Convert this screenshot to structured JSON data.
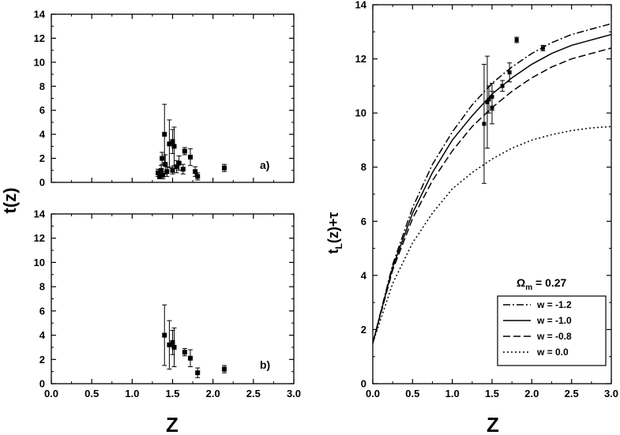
{
  "chart_data": [
    {
      "type": "scatter",
      "panel_label": "a)",
      "ylabel": "t(z)",
      "xlim": [
        0.0,
        3.0
      ],
      "ylim": [
        0,
        14
      ],
      "x_ticks": [
        0.0,
        0.5,
        1.0,
        1.5,
        2.0,
        2.5,
        3.0
      ],
      "y_ticks": [
        0,
        2,
        4,
        6,
        8,
        10,
        12,
        14
      ],
      "points": [
        {
          "x": 1.32,
          "y": 0.8,
          "err": 0.3
        },
        {
          "x": 1.34,
          "y": 0.5,
          "err": 0.2
        },
        {
          "x": 1.36,
          "y": 1.0,
          "err": 0.4
        },
        {
          "x": 1.37,
          "y": 2.0,
          "err": 0.5
        },
        {
          "x": 1.38,
          "y": 0.6,
          "err": 0.3
        },
        {
          "x": 1.4,
          "y": 4.0,
          "err": 2.5
        },
        {
          "x": 1.41,
          "y": 1.5,
          "err": 0.8
        },
        {
          "x": 1.43,
          "y": 0.9,
          "err": 0.4
        },
        {
          "x": 1.46,
          "y": 3.2,
          "err": 2.0
        },
        {
          "x": 1.5,
          "y": 3.4,
          "err": 1.0
        },
        {
          "x": 1.5,
          "y": 1.0,
          "err": 0.3
        },
        {
          "x": 1.52,
          "y": 3.0,
          "err": 1.6
        },
        {
          "x": 1.55,
          "y": 1.3,
          "err": 0.5
        },
        {
          "x": 1.58,
          "y": 1.6,
          "err": 0.6
        },
        {
          "x": 1.63,
          "y": 1.1,
          "err": 0.4
        },
        {
          "x": 1.65,
          "y": 2.6,
          "err": 0.3
        },
        {
          "x": 1.72,
          "y": 2.1,
          "err": 0.7
        },
        {
          "x": 1.78,
          "y": 0.9,
          "err": 0.4
        },
        {
          "x": 1.81,
          "y": 0.5,
          "err": 0.3
        },
        {
          "x": 2.14,
          "y": 1.2,
          "err": 0.3
        }
      ]
    },
    {
      "type": "scatter",
      "panel_label": "b)",
      "xlabel": "Z",
      "xlim": [
        0.0,
        3.0
      ],
      "ylim": [
        0,
        14
      ],
      "x_ticks": [
        0.0,
        0.5,
        1.0,
        1.5,
        2.0,
        2.5,
        3.0
      ],
      "y_ticks": [
        0,
        2,
        4,
        6,
        8,
        10,
        12,
        14
      ],
      "points": [
        {
          "x": 1.4,
          "y": 4.0,
          "err": 2.5
        },
        {
          "x": 1.46,
          "y": 3.2,
          "err": 2.0
        },
        {
          "x": 1.5,
          "y": 3.4,
          "err": 1.0
        },
        {
          "x": 1.52,
          "y": 3.0,
          "err": 1.6
        },
        {
          "x": 1.65,
          "y": 2.6,
          "err": 0.3
        },
        {
          "x": 1.72,
          "y": 2.1,
          "err": 0.7
        },
        {
          "x": 1.81,
          "y": 0.9,
          "err": 0.4
        },
        {
          "x": 2.14,
          "y": 1.2,
          "err": 0.3
        }
      ]
    },
    {
      "type": "line",
      "xlabel": "Z",
      "ylabel": "t_L(z)+τ",
      "annotation": "Ω_m = 0.27",
      "xlim": [
        0.0,
        3.0
      ],
      "ylim": [
        0,
        14
      ],
      "x_ticks": [
        0.0,
        0.5,
        1.0,
        1.5,
        2.0,
        2.5,
        3.0
      ],
      "y_ticks": [
        0,
        2,
        4,
        6,
        8,
        10,
        12,
        14
      ],
      "legend_position": "bottom-right",
      "x": [
        0.0,
        0.25,
        0.5,
        0.75,
        1.0,
        1.25,
        1.5,
        1.75,
        2.0,
        2.25,
        2.5,
        2.75,
        3.0
      ],
      "series": [
        {
          "name": "w = -1.2",
          "style": "dashdot",
          "values": [
            1.5,
            4.4,
            6.5,
            8.1,
            9.3,
            10.3,
            11.1,
            11.7,
            12.2,
            12.6,
            12.9,
            13.1,
            13.3
          ]
        },
        {
          "name": "w = -1.0",
          "style": "solid",
          "values": [
            1.5,
            4.3,
            6.3,
            7.8,
            9.0,
            9.9,
            10.7,
            11.3,
            11.8,
            12.2,
            12.5,
            12.7,
            12.9
          ]
        },
        {
          "name": "w = -0.8",
          "style": "dashed",
          "values": [
            1.5,
            4.2,
            6.1,
            7.5,
            8.6,
            9.5,
            10.2,
            10.8,
            11.3,
            11.7,
            12.0,
            12.2,
            12.4
          ]
        },
        {
          "name": "w =  0.0",
          "style": "dotted",
          "values": [
            1.5,
            3.7,
            5.2,
            6.3,
            7.2,
            7.8,
            8.3,
            8.7,
            9.0,
            9.2,
            9.35,
            9.45,
            9.5
          ]
        }
      ],
      "points": [
        {
          "x": 1.4,
          "y": 9.6,
          "err": 2.2
        },
        {
          "x": 1.44,
          "y": 10.4,
          "err": 1.7
        },
        {
          "x": 1.46,
          "y": 10.5,
          "err": 0.5
        },
        {
          "x": 1.5,
          "y": 10.6,
          "err": 0.5
        },
        {
          "x": 1.5,
          "y": 10.2,
          "err": 0.6
        },
        {
          "x": 1.63,
          "y": 11.0,
          "err": 0.2
        },
        {
          "x": 1.72,
          "y": 11.5,
          "err": 0.35
        },
        {
          "x": 1.81,
          "y": 12.7,
          "err": 0.1
        },
        {
          "x": 2.14,
          "y": 12.4,
          "err": 0.1
        }
      ]
    }
  ]
}
